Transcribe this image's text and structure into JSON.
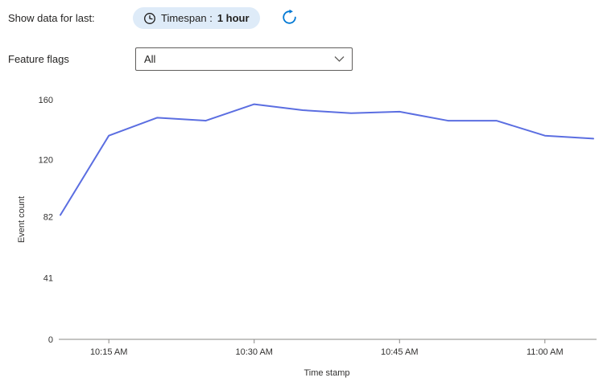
{
  "filters": {
    "show_data_label": "Show data for last:",
    "timespan_label": "Timespan :",
    "timespan_value": "1 hour",
    "feature_flags_label": "Feature flags",
    "feature_flags_value": "All"
  },
  "icons": {
    "timespan": "clock-icon",
    "refresh": "refresh-icon",
    "dropdown": "chevron-down-icon"
  },
  "colors": {
    "pill_background": "#deebf8",
    "refresh_blue": "#0078d4",
    "line_color": "#5b6ee1",
    "axis_line": "#8a8886"
  },
  "chart_data": {
    "type": "line",
    "title": "",
    "xlabel": "Time stamp",
    "ylabel": "Event count",
    "ylim": [
      0,
      160
    ],
    "y_ticks": [
      0,
      41,
      82,
      120,
      160
    ],
    "x_ticks": [
      "10:15 AM",
      "10:30 AM",
      "10:45 AM",
      "11:00 AM"
    ],
    "grid": false,
    "legend": "none",
    "series": [
      {
        "name": "Event count",
        "x": [
          "10:10 AM",
          "10:15 AM",
          "10:20 AM",
          "10:25 AM",
          "10:30 AM",
          "10:35 AM",
          "10:40 AM",
          "10:45 AM",
          "10:50 AM",
          "10:55 AM",
          "11:00 AM",
          "11:05 AM"
        ],
        "values": [
          83,
          136,
          148,
          146,
          157,
          153,
          151,
          152,
          146,
          146,
          136,
          134
        ]
      }
    ]
  }
}
